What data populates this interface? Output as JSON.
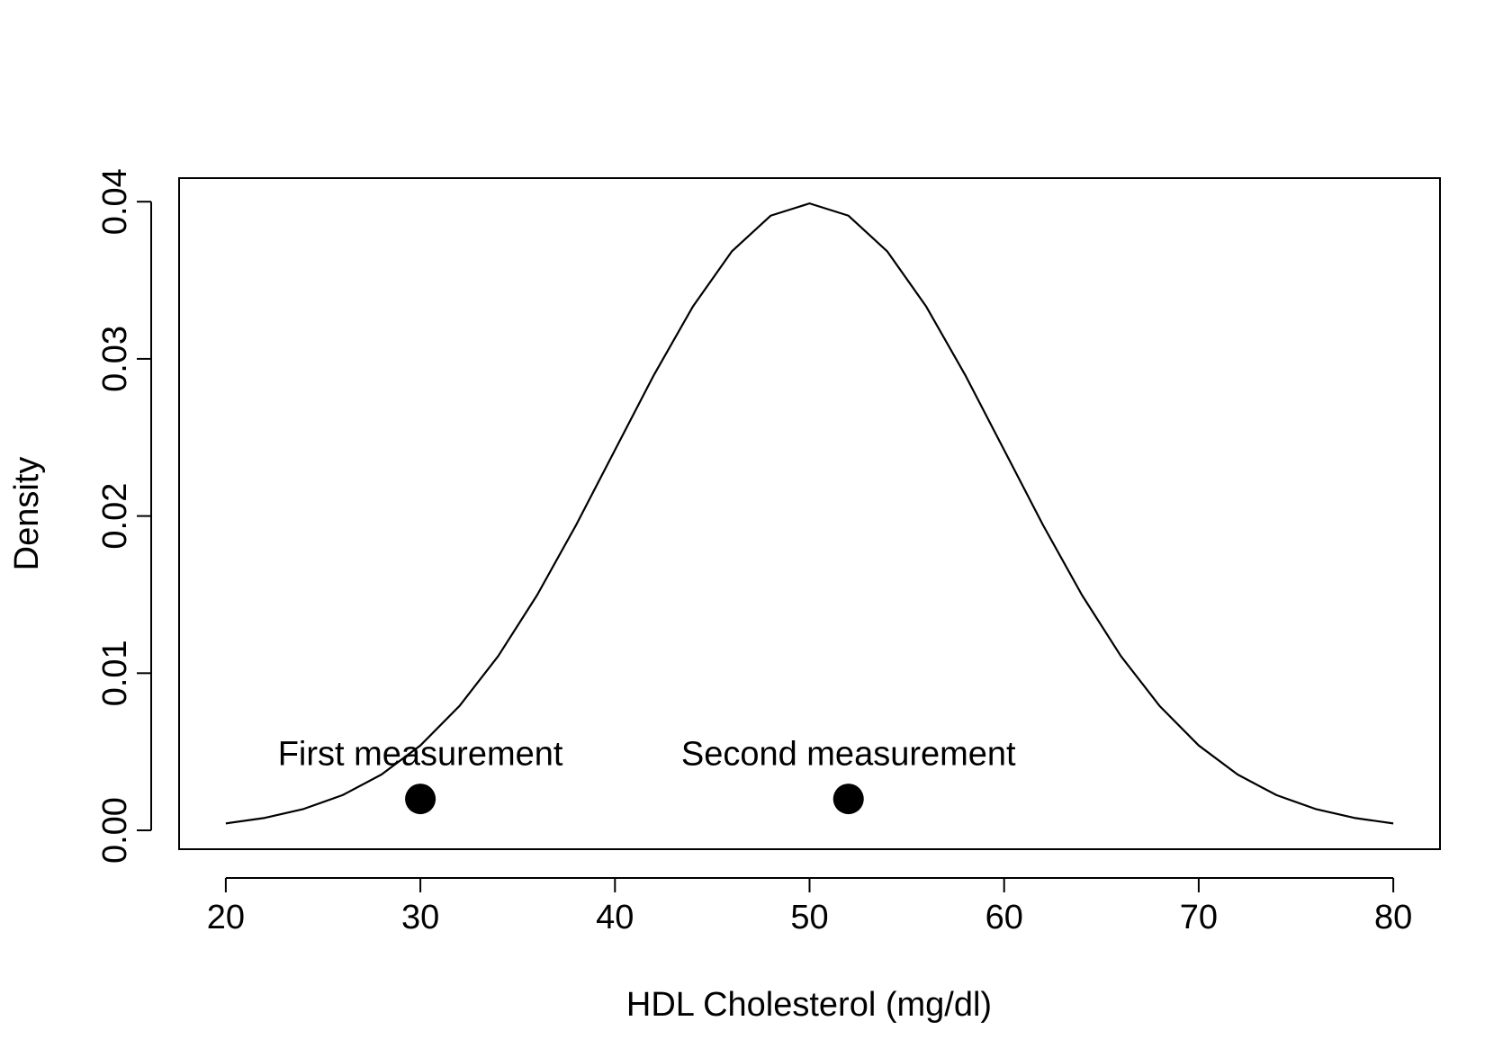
{
  "chart_data": {
    "type": "line",
    "title": "",
    "xlabel": "HDL Cholesterol (mg/dl)",
    "ylabel": "Density",
    "xlim": [
      17.6,
      82.4
    ],
    "ylim": [
      -0.0012,
      0.0415
    ],
    "x_ticks": [
      20,
      30,
      40,
      50,
      60,
      70,
      80
    ],
    "x_tick_labels": [
      "20",
      "30",
      "40",
      "50",
      "60",
      "70",
      "80"
    ],
    "y_ticks": [
      0.0,
      0.01,
      0.02,
      0.03,
      0.04
    ],
    "y_tick_labels": [
      "0.00",
      "0.01",
      "0.02",
      "0.03",
      "0.04"
    ],
    "grid": false,
    "series": [
      {
        "kind": "curve",
        "description": "Normal density, mean 50, sd 10",
        "x": [
          20,
          22,
          24,
          26,
          28,
          30,
          32,
          34,
          36,
          38,
          40,
          42,
          44,
          46,
          48,
          50,
          52,
          54,
          56,
          58,
          60,
          62,
          64,
          66,
          68,
          70,
          72,
          74,
          76,
          78,
          80
        ],
        "y": [
          0.00044,
          0.00079,
          0.00136,
          0.00224,
          0.00355,
          0.0054,
          0.0079,
          0.01109,
          0.01497,
          0.01942,
          0.0242,
          0.02897,
          0.03332,
          0.03683,
          0.03911,
          0.03989,
          0.03911,
          0.03683,
          0.03332,
          0.02897,
          0.0242,
          0.01942,
          0.01497,
          0.01109,
          0.0079,
          0.0054,
          0.00355,
          0.00224,
          0.00136,
          0.00079,
          0.00044
        ]
      },
      {
        "kind": "points",
        "x": [
          30,
          52
        ],
        "y": [
          0.002,
          0.002
        ]
      }
    ],
    "annotations": [
      {
        "text": "First measurement",
        "x": 30,
        "y": 0.0049
      },
      {
        "text": "Second measurement",
        "x": 52,
        "y": 0.0049
      }
    ]
  }
}
